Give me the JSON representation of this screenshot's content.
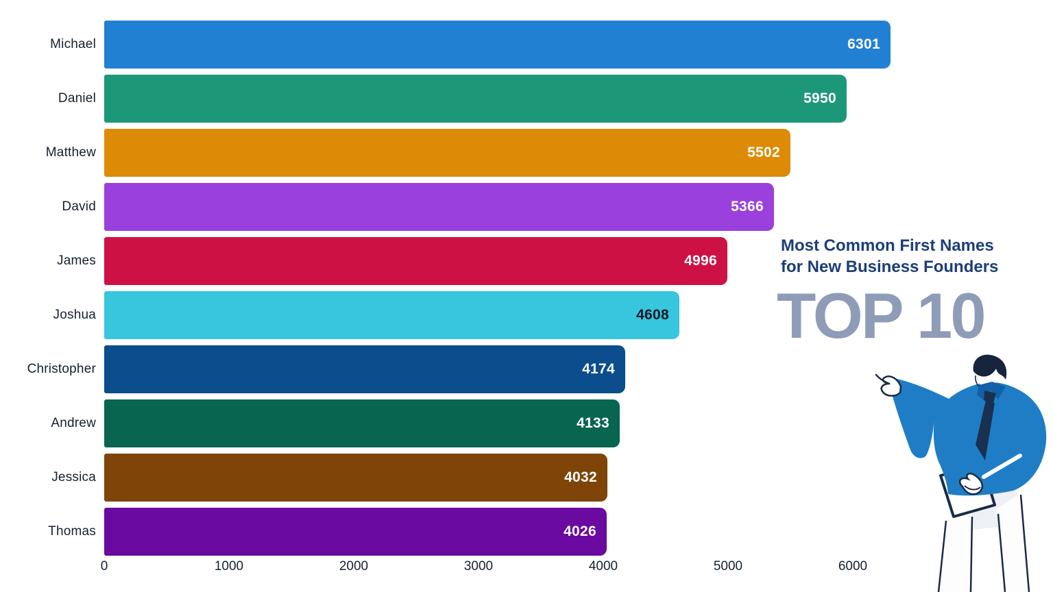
{
  "header": {
    "title_line1": "Most Common First Names",
    "title_line2": "for New Business Founders",
    "badge": "TOP 10"
  },
  "colors": {
    "title_text": "#1c3e78",
    "badge_text": "#8e9cb8",
    "category_text": "#16202f",
    "axis_text": "#16202f",
    "background": "#ffffff"
  },
  "chart_data": {
    "type": "bar",
    "orientation": "horizontal",
    "title": "Most Common First Names for New Business Founders — TOP 10",
    "categories": [
      "Michael",
      "Daniel",
      "Matthew",
      "David",
      "James",
      "Joshua",
      "Christopher",
      "Andrew",
      "Jessica",
      "Thomas"
    ],
    "values": [
      6301,
      5950,
      5502,
      5366,
      4996,
      4608,
      4174,
      4133,
      4032,
      4026
    ],
    "bar_colors": [
      "#2280d3",
      "#1c9878",
      "#dd8b06",
      "#9a41dd",
      "#ce1145",
      "#38c5de",
      "#0b4d8d",
      "#076550",
      "#7f4508",
      "#6a0aa0"
    ],
    "value_text_colors": [
      "#ffffff",
      "#ffffff",
      "#ffffff",
      "#ffffff",
      "#ffffff",
      "#101826",
      "#ffffff",
      "#ffffff",
      "#ffffff",
      "#ffffff"
    ],
    "x_ticks": [
      "0",
      "1000",
      "2000",
      "3000",
      "4000",
      "5000",
      "6000"
    ],
    "x_tick_values": [
      0,
      1000,
      2000,
      3000,
      4000,
      5000,
      6000
    ],
    "xlim": [
      0,
      6550
    ],
    "grid": false,
    "legend": "none",
    "value_label_position": "inside-end"
  },
  "illustration": {
    "name": "businessman-pointing-left",
    "jacket_color": "#1f7dc6",
    "dark_color": "#16243c"
  }
}
